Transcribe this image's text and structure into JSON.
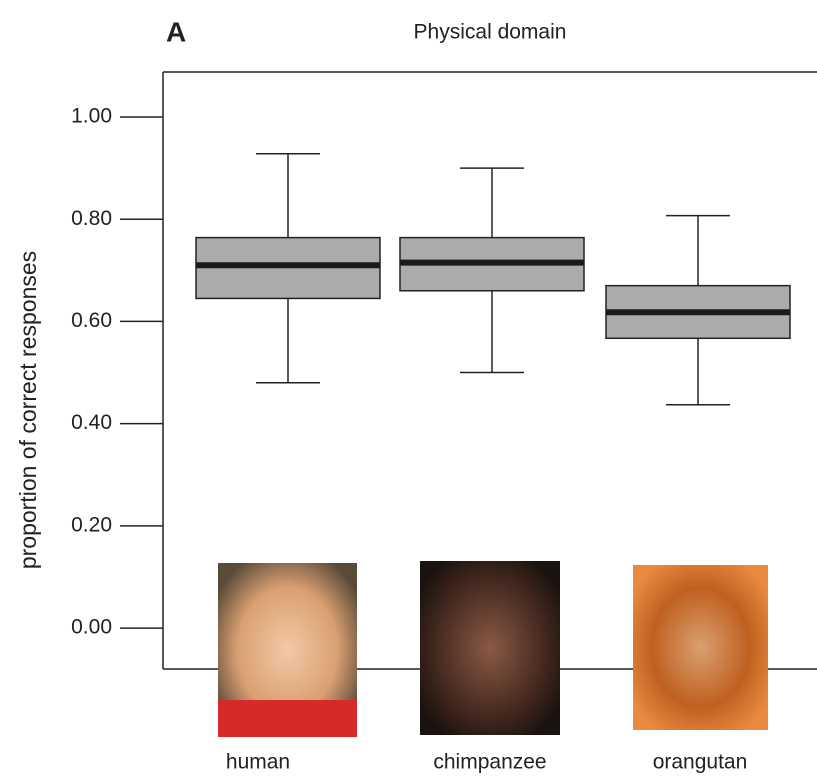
{
  "chart_data": {
    "type": "box",
    "panel_label": "A",
    "title": "Physical domain",
    "y_label": "proportion of correct responses",
    "categories": [
      "human",
      "chimpanzee",
      "orangutan"
    ],
    "min": [
      0.48,
      0.5,
      0.437
    ],
    "q1": [
      0.645,
      0.66,
      0.567
    ],
    "median": [
      0.71,
      0.715,
      0.618
    ],
    "q3": [
      0.764,
      0.764,
      0.67
    ],
    "max": [
      0.928,
      0.9,
      0.807
    ],
    "color": "#ababab",
    "ylim": [
      -0.08,
      1.088
    ],
    "yticks": [
      {
        "value": 0,
        "label": "0.00"
      },
      {
        "value": 0.2,
        "label": "0.20"
      },
      {
        "value": 0.4,
        "label": "0.40"
      },
      {
        "value": 0.6,
        "label": "0.60"
      },
      {
        "value": 0.8,
        "label": "0.80"
      },
      {
        "value": 1,
        "label": "1.00"
      }
    ]
  }
}
